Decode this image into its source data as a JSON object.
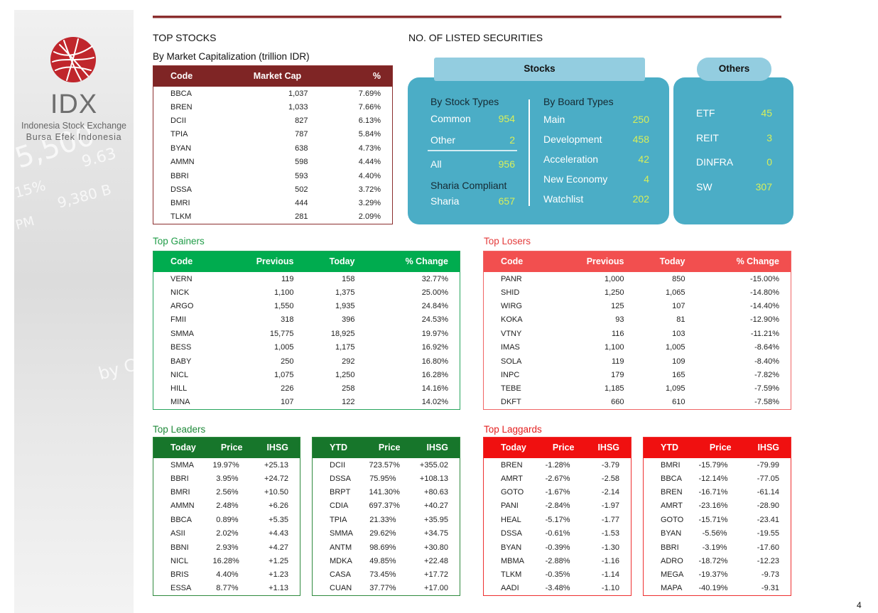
{
  "sidebar": {
    "logo_text": "IDX",
    "subtitle_line1": "Indonesia Stock Exchange",
    "subtitle_line2": "Bursa  Efek  Indonesia",
    "bg_texts": [
      "5,500",
      "9,380 B",
      "by Ch",
      "9.63",
      "15%",
      "PM"
    ]
  },
  "top_stocks": {
    "title": "TOP STOCKS",
    "subtitle": "By Market Capitalization (trillion IDR)",
    "headers": [
      "Code",
      "Market Cap",
      "%"
    ],
    "rows": [
      [
        "BBCA",
        "1,037",
        "7.69%"
      ],
      [
        "BREN",
        "1,033",
        "7.66%"
      ],
      [
        "DCII",
        "827",
        "6.13%"
      ],
      [
        "TPIA",
        "787",
        "5.84%"
      ],
      [
        "BYAN",
        "638",
        "4.73%"
      ],
      [
        "AMMN",
        "598",
        "4.44%"
      ],
      [
        "BBRI",
        "593",
        "4.40%"
      ],
      [
        "DSSA",
        "502",
        "3.72%"
      ],
      [
        "BMRI",
        "444",
        "3.29%"
      ],
      [
        "TLKM",
        "281",
        "2.09%"
      ]
    ]
  },
  "listed": {
    "title": "NO. OF LISTED SECURITIES",
    "stocks_tab": "Stocks",
    "others_tab": "Others",
    "by_stock_types": "By Stock Types",
    "common_label": "Common",
    "common_value": "954",
    "other_label": "Other",
    "other_value": "2",
    "all_label": "All",
    "all_value": "956",
    "sharia_compliant": "Sharia Compliant",
    "sharia_label": "Sharia",
    "sharia_value": "657",
    "by_board_types": "By Board Types",
    "boards": [
      {
        "label": "Main",
        "value": "250"
      },
      {
        "label": "Development",
        "value": "458"
      },
      {
        "label": "Acceleration",
        "value": "42"
      },
      {
        "label": "New Economy",
        "value": "4"
      },
      {
        "label": "Watchlist",
        "value": "202"
      }
    ],
    "others": [
      {
        "label": "ETF",
        "value": "45"
      },
      {
        "label": "REIT",
        "value": "3"
      },
      {
        "label": "DINFRA",
        "value": "0"
      },
      {
        "label": "SW",
        "value": "307"
      }
    ]
  },
  "gainers": {
    "title": "Top Gainers",
    "headers": [
      "Code",
      "Previous",
      "Today",
      "% Change"
    ],
    "rows": [
      [
        "VERN",
        "119",
        "158",
        "32.77%"
      ],
      [
        "NICK",
        "1,100",
        "1,375",
        "25.00%"
      ],
      [
        "ARGO",
        "1,550",
        "1,935",
        "24.84%"
      ],
      [
        "FMII",
        "318",
        "396",
        "24.53%"
      ],
      [
        "SMMA",
        "15,775",
        "18,925",
        "19.97%"
      ],
      [
        "BESS",
        "1,005",
        "1,175",
        "16.92%"
      ],
      [
        "BABY",
        "250",
        "292",
        "16.80%"
      ],
      [
        "NICL",
        "1,075",
        "1,250",
        "16.28%"
      ],
      [
        "HILL",
        "226",
        "258",
        "14.16%"
      ],
      [
        "MINA",
        "107",
        "122",
        "14.02%"
      ]
    ]
  },
  "losers": {
    "title": "Top Losers",
    "headers": [
      "Code",
      "Previous",
      "Today",
      "% Change"
    ],
    "rows": [
      [
        "PANR",
        "1,000",
        "850",
        "-15.00%"
      ],
      [
        "SHID",
        "1,250",
        "1,065",
        "-14.80%"
      ],
      [
        "WIRG",
        "125",
        "107",
        "-14.40%"
      ],
      [
        "KOKA",
        "93",
        "81",
        "-12.90%"
      ],
      [
        "VTNY",
        "116",
        "103",
        "-11.21%"
      ],
      [
        "IMAS",
        "1,100",
        "1,005",
        "-8.64%"
      ],
      [
        "SOLA",
        "119",
        "109",
        "-8.40%"
      ],
      [
        "INPC",
        "179",
        "165",
        "-7.82%"
      ],
      [
        "TEBE",
        "1,185",
        "1,095",
        "-7.59%"
      ],
      [
        "DKFT",
        "660",
        "610",
        "-7.58%"
      ]
    ]
  },
  "leaders": {
    "title": "Top Leaders",
    "today": {
      "headers": [
        "Today",
        "Price",
        "IHSG"
      ],
      "rows": [
        [
          "SMMA",
          "19.97%",
          "+25.13"
        ],
        [
          "BBRI",
          "3.95%",
          "+24.72"
        ],
        [
          "BMRI",
          "2.56%",
          "+10.50"
        ],
        [
          "AMMN",
          "2.48%",
          "+6.26"
        ],
        [
          "BBCA",
          "0.89%",
          "+5.35"
        ],
        [
          "ASII",
          "2.02%",
          "+4.43"
        ],
        [
          "BBNI",
          "2.93%",
          "+4.27"
        ],
        [
          "NICL",
          "16.28%",
          "+1.25"
        ],
        [
          "BRIS",
          "4.40%",
          "+1.23"
        ],
        [
          "ESSA",
          "8.77%",
          "+1.13"
        ]
      ]
    },
    "ytd": {
      "headers": [
        "YTD",
        "Price",
        "IHSG"
      ],
      "rows": [
        [
          "DCII",
          "723.57%",
          "+355.02"
        ],
        [
          "DSSA",
          "75.95%",
          "+108.13"
        ],
        [
          "BRPT",
          "141.30%",
          "+80.63"
        ],
        [
          "CDIA",
          "697.37%",
          "+40.27"
        ],
        [
          "TPIA",
          "21.33%",
          "+35.95"
        ],
        [
          "SMMA",
          "29.62%",
          "+34.75"
        ],
        [
          "ANTM",
          "98.69%",
          "+30.80"
        ],
        [
          "MDKA",
          "49.85%",
          "+22.48"
        ],
        [
          "CASA",
          "73.45%",
          "+17.72"
        ],
        [
          "CUAN",
          "37.77%",
          "+17.00"
        ]
      ]
    }
  },
  "laggards": {
    "title": "Top Laggards",
    "today": {
      "headers": [
        "Today",
        "Price",
        "IHSG"
      ],
      "rows": [
        [
          "BREN",
          "-1.28%",
          "-3.79"
        ],
        [
          "AMRT",
          "-2.67%",
          "-2.58"
        ],
        [
          "GOTO",
          "-1.67%",
          "-2.14"
        ],
        [
          "PANI",
          "-2.84%",
          "-1.97"
        ],
        [
          "HEAL",
          "-5.17%",
          "-1.77"
        ],
        [
          "DSSA",
          "-0.61%",
          "-1.53"
        ],
        [
          "BYAN",
          "-0.39%",
          "-1.30"
        ],
        [
          "MBMA",
          "-2.88%",
          "-1.16"
        ],
        [
          "TLKM",
          "-0.35%",
          "-1.14"
        ],
        [
          "AADI",
          "-3.48%",
          "-1.10"
        ]
      ]
    },
    "ytd": {
      "headers": [
        "YTD",
        "Price",
        "IHSG"
      ],
      "rows": [
        [
          "BMRI",
          "-15.79%",
          "-79.99"
        ],
        [
          "BBCA",
          "-12.14%",
          "-77.05"
        ],
        [
          "BREN",
          "-16.71%",
          "-61.14"
        ],
        [
          "AMRT",
          "-23.16%",
          "-28.90"
        ],
        [
          "GOTO",
          "-15.71%",
          "-23.41"
        ],
        [
          "BYAN",
          "-5.56%",
          "-19.55"
        ],
        [
          "BBRI",
          "-3.19%",
          "-17.60"
        ],
        [
          "ADRO",
          "-18.72%",
          "-12.23"
        ],
        [
          "MEGA",
          "-19.37%",
          "-9.73"
        ],
        [
          "MAPA",
          "-40.19%",
          "-9.31"
        ]
      ]
    }
  },
  "page_number": "4",
  "colors": {
    "maroon": "#7f2525",
    "green": "#00ac4f",
    "red": "#f24f4f",
    "dark_green": "#17762b",
    "bright_red": "#f01010",
    "panel_blue": "#4badc6",
    "tab_blue": "#93cde0",
    "value_yellow": "#d8ef5a"
  }
}
